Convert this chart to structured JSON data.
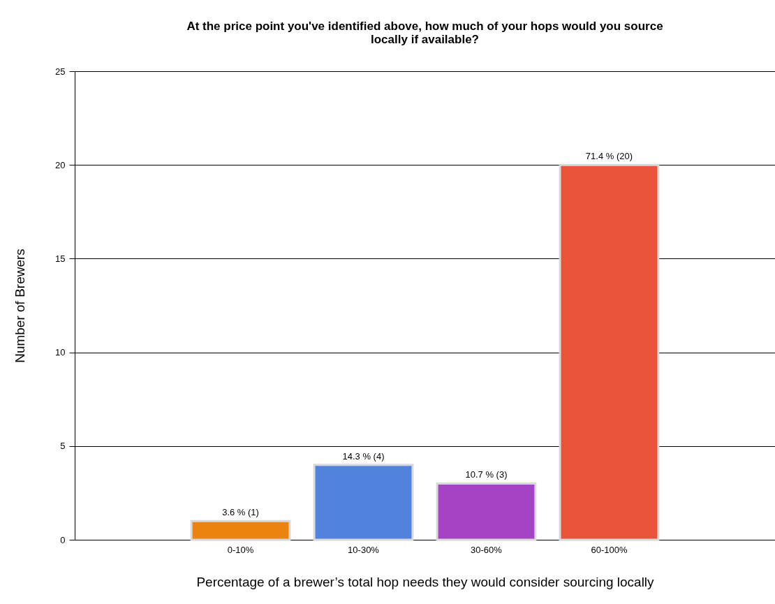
{
  "chart_data": {
    "type": "bar",
    "title": "At the price point you've identified above, how much of your hops would you source locally if available?",
    "xlabel": "Percentage of a brewer’s total hop needs they would consider sourcing locally",
    "ylabel": "Number of Brewers",
    "categories": [
      "0-10%",
      "10-30%",
      "30-60%",
      "60-100%"
    ],
    "values": [
      1,
      4,
      3,
      20
    ],
    "colors": [
      "#ec8310",
      "#5283dc",
      "#a443c4",
      "#e8533a"
    ],
    "value_labels": [
      "3.6 % (1)",
      "14.3 % (4)",
      "10.7 % (3)",
      "71.4 % (20)"
    ],
    "ylim": [
      0,
      25
    ],
    "yticks": [
      0,
      5,
      10,
      15,
      20,
      25
    ],
    "grid": "y"
  }
}
